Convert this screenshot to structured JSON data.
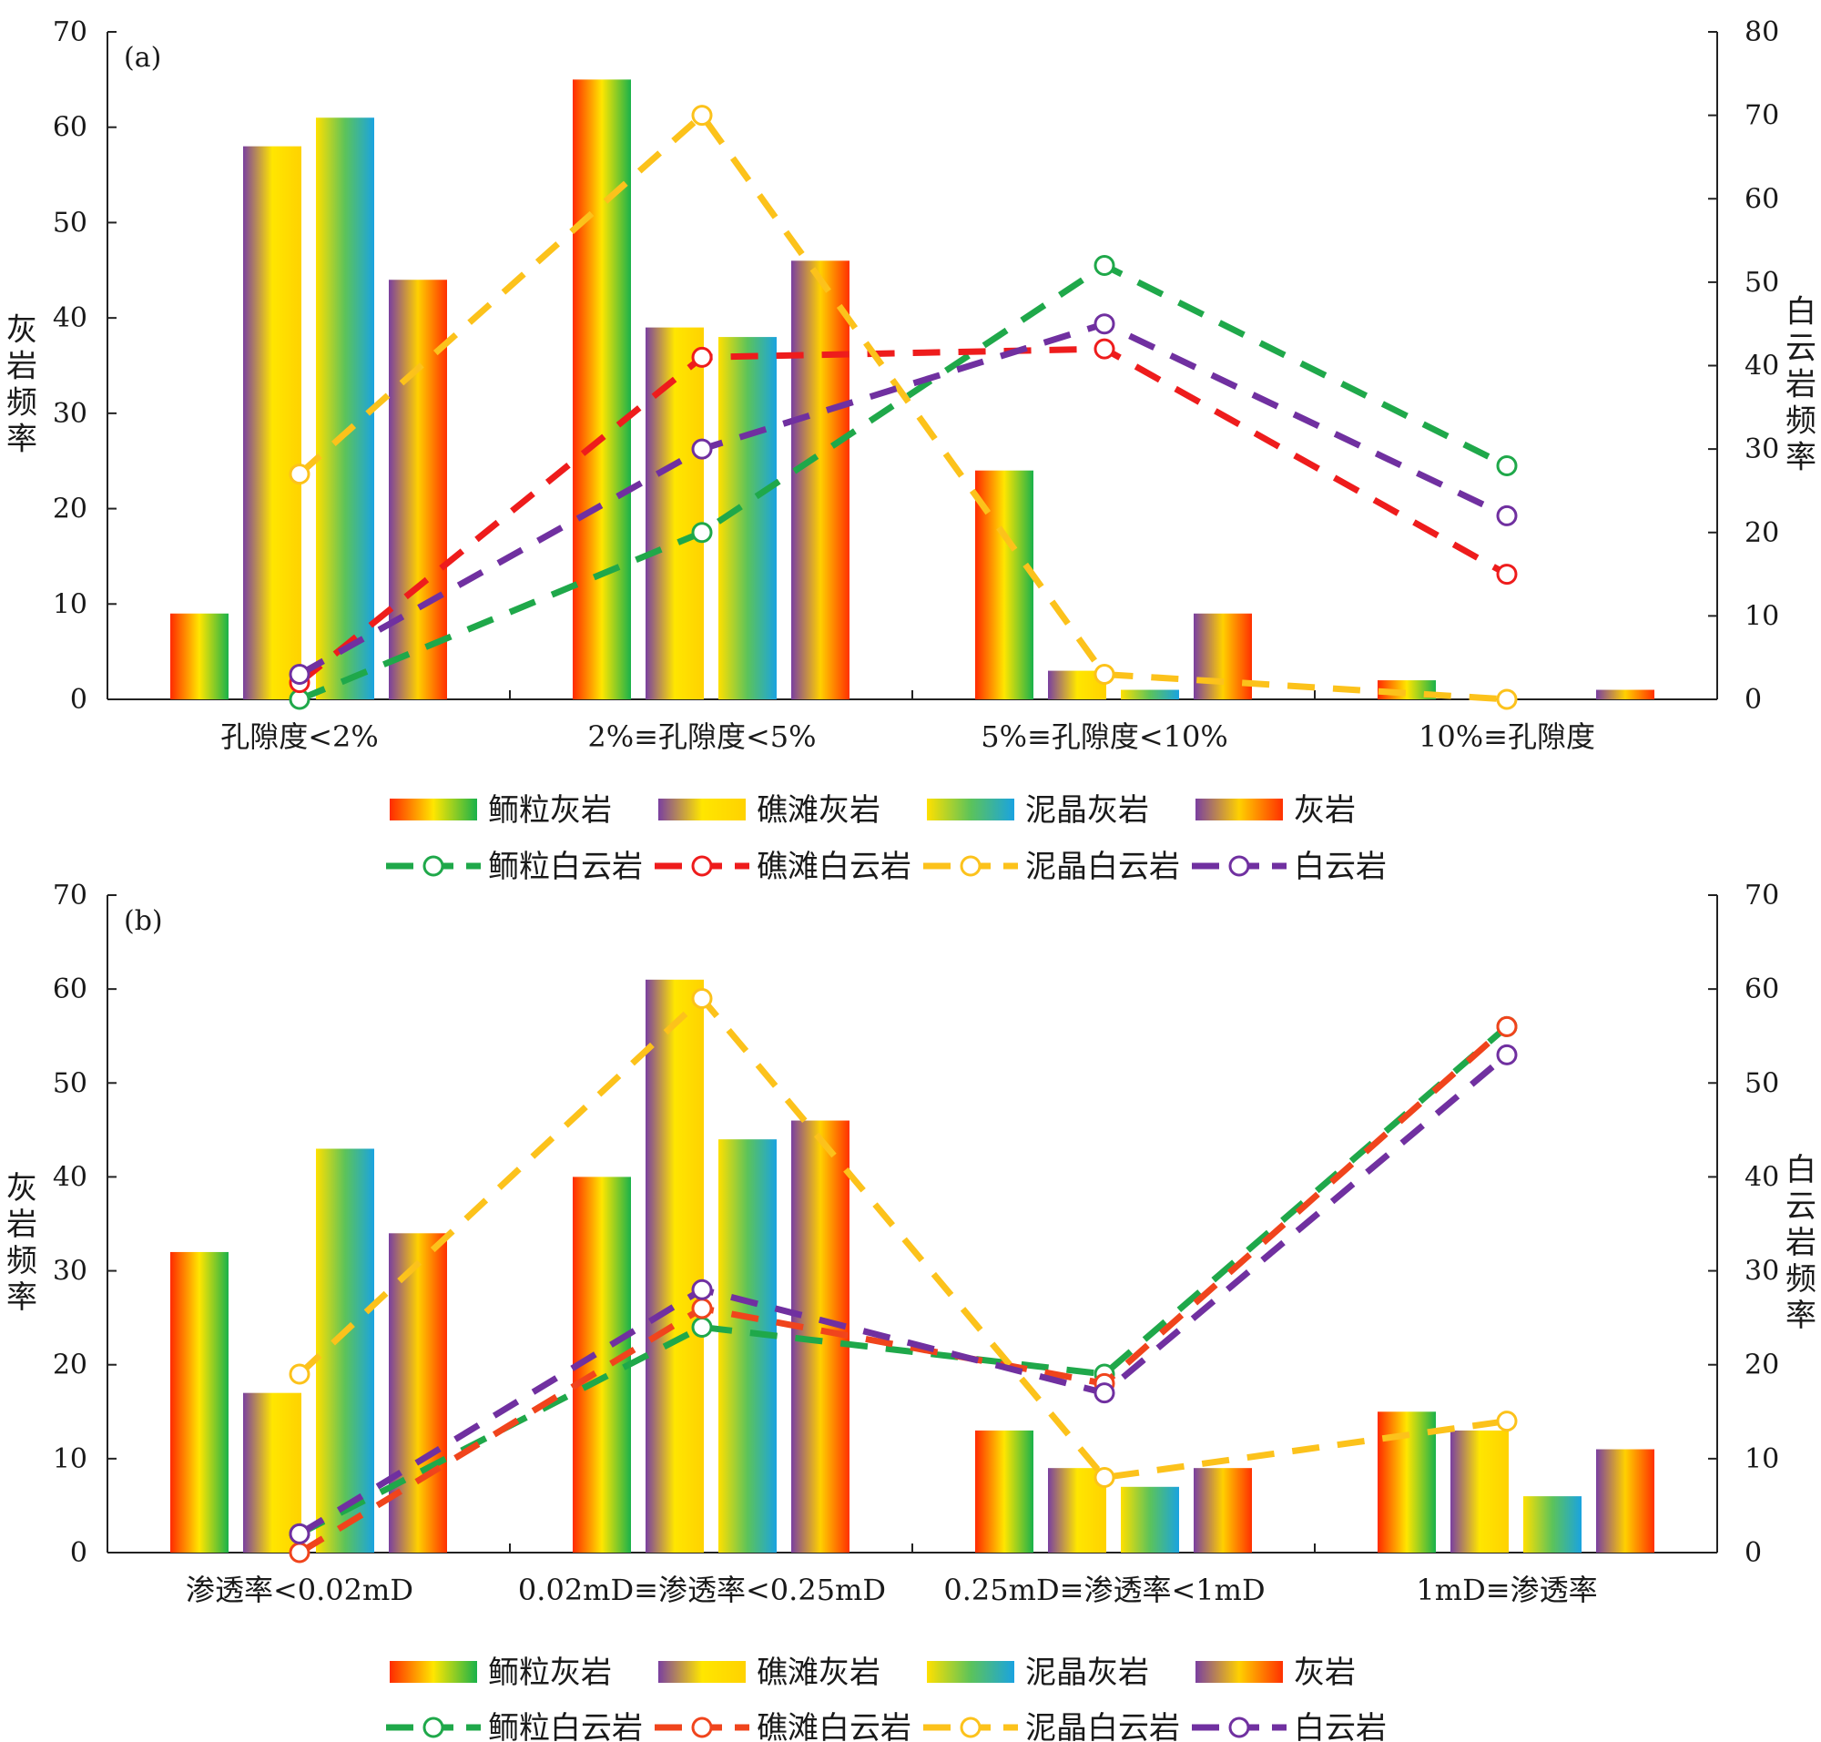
{
  "chart_data": [
    {
      "type": "bar",
      "panel_label": "(a)",
      "categories": [
        "孔隙度<2%",
        "2%≡孔隙度<5%",
        "5%≡孔隙度<10%",
        "10%≡孔隙度"
      ],
      "left_axis": {
        "label": "灰岩频率",
        "range": [
          0,
          70
        ],
        "ticks": [
          0,
          10,
          20,
          30,
          40,
          50,
          60,
          70
        ]
      },
      "right_axis": {
        "label": "白云岩频率",
        "range": [
          0,
          80
        ],
        "ticks": [
          0,
          10,
          20,
          30,
          40,
          50,
          60,
          70,
          80
        ]
      },
      "bar_series": [
        {
          "name": "鲕粒灰岩",
          "values": [
            9,
            65,
            24,
            2
          ],
          "gradient": [
            "#ff2a00",
            "#ffe600",
            "#19b24a"
          ]
        },
        {
          "name": "礁滩灰岩",
          "values": [
            58,
            39,
            3,
            0
          ],
          "gradient": [
            "#7a3fa0",
            "#ffe600",
            "#ffd200"
          ]
        },
        {
          "name": "泥晶灰岩",
          "values": [
            61,
            38,
            1,
            0
          ],
          "gradient": [
            "#ffe000",
            "#5cc35a",
            "#1aa3e0"
          ]
        },
        {
          "name": "灰岩",
          "values": [
            44,
            46,
            9,
            1
          ],
          "gradient": [
            "#7a3fa0",
            "#ffd000",
            "#ff3000"
          ]
        }
      ],
      "line_series": [
        {
          "name": "鲕粒白云岩",
          "values": [
            0,
            20,
            52,
            28
          ],
          "color": "#1fa84a"
        },
        {
          "name": "礁滩白云岩",
          "values": [
            2,
            41,
            42,
            15
          ],
          "color": "#ee1c1c"
        },
        {
          "name": "泥晶白云岩",
          "values": [
            27,
            70,
            3,
            0
          ],
          "color": "#fcc21b"
        },
        {
          "name": "白云岩",
          "values": [
            3,
            30,
            45,
            22
          ],
          "color": "#7030a0"
        }
      ]
    },
    {
      "type": "bar",
      "panel_label": "(b)",
      "categories": [
        "渗透率<0.02mD",
        "0.02mD≡渗透率<0.25mD",
        "0.25mD≡渗透率<1mD",
        "1mD≡渗透率"
      ],
      "left_axis": {
        "label": "灰岩频率",
        "range": [
          0,
          70
        ],
        "ticks": [
          0,
          10,
          20,
          30,
          40,
          50,
          60,
          70
        ]
      },
      "right_axis": {
        "label": "白云岩频率",
        "range": [
          0,
          70
        ],
        "ticks": [
          0,
          10,
          20,
          30,
          40,
          50,
          60,
          70
        ]
      },
      "bar_series": [
        {
          "name": "鲕粒灰岩",
          "values": [
            32,
            40,
            13,
            15
          ],
          "gradient": [
            "#ff2a00",
            "#ffe600",
            "#19b24a"
          ]
        },
        {
          "name": "礁滩灰岩",
          "values": [
            17,
            61,
            9,
            13
          ],
          "gradient": [
            "#7a3fa0",
            "#ffe600",
            "#ffd200"
          ]
        },
        {
          "name": "泥晶灰岩",
          "values": [
            43,
            44,
            7,
            6
          ],
          "gradient": [
            "#ffe000",
            "#5cc35a",
            "#1aa3e0"
          ]
        },
        {
          "name": "灰岩",
          "values": [
            34,
            46,
            9,
            11
          ],
          "gradient": [
            "#7a3fa0",
            "#ffd000",
            "#ff3000"
          ]
        }
      ],
      "line_series": [
        {
          "name": "鲕粒白云岩",
          "values": [
            2,
            24,
            19,
            56
          ],
          "color": "#1fa84a"
        },
        {
          "name": "礁滩白云岩",
          "values": [
            0,
            26,
            18,
            56
          ],
          "color": "#f0441c"
        },
        {
          "name": "泥晶白云岩",
          "values": [
            19,
            59,
            8,
            14
          ],
          "color": "#fcc21b"
        },
        {
          "name": "白云岩",
          "values": [
            2,
            28,
            17,
            53
          ],
          "color": "#7030a0"
        }
      ]
    }
  ]
}
